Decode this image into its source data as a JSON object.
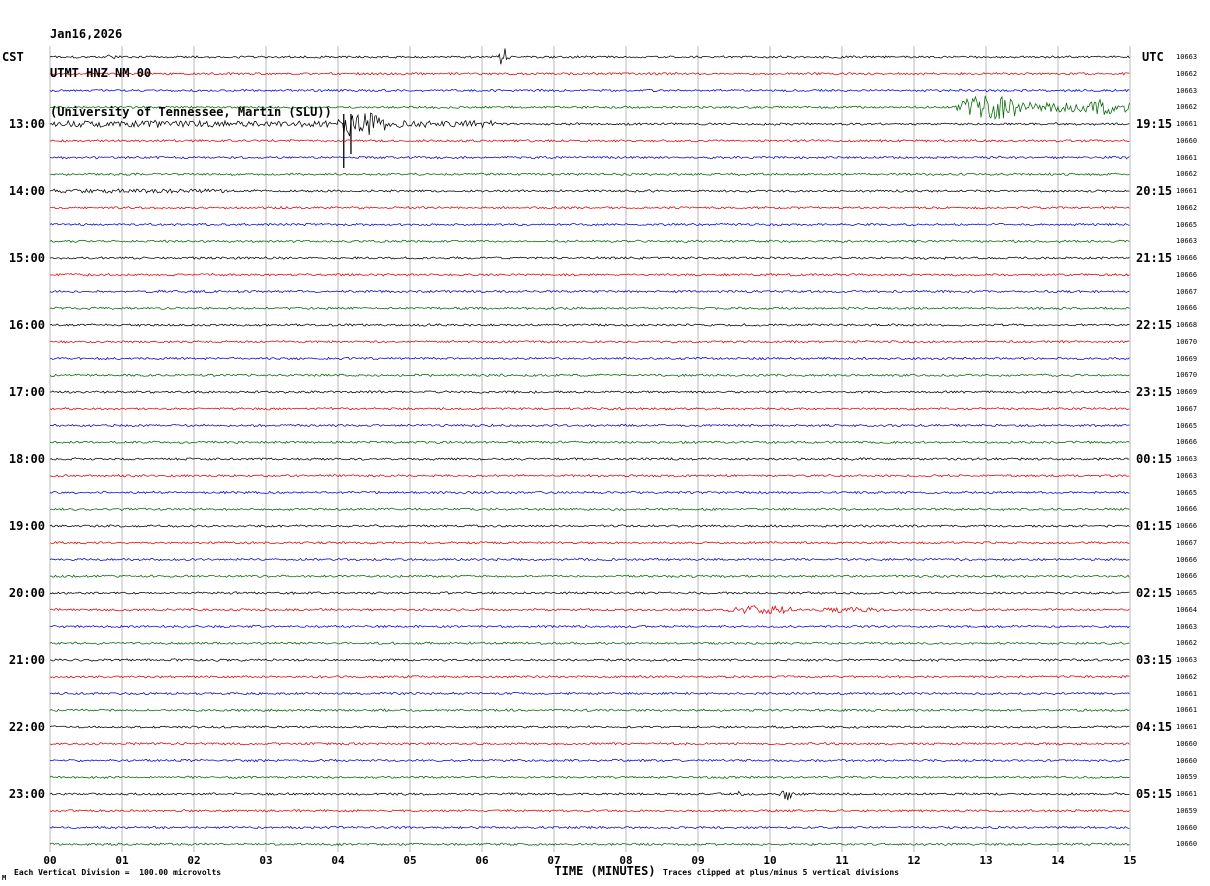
{
  "header": {
    "date": "Jan16,2026",
    "station": "UTMT HNZ NM 00",
    "network": "(University of Tennessee, Martin (SLU))"
  },
  "left_axis_title": "CST",
  "right_axis_title": "UTC",
  "footer": {
    "xlabel": "TIME (MINUTES)",
    "scale_note": "Each Vertical Division =  100.00 microvolts",
    "clip_note": "Traces clipped at plus/minus 5 vertical divisions",
    "mark": "M"
  },
  "chart_data": {
    "type": "line",
    "date": "Jan16,2026",
    "station": "UTMT HNZ NM 00",
    "source": "(University of Tennessee, Martin (SLU))",
    "xlabel": "TIME (MINUTES)",
    "x_ticks": [
      "00",
      "01",
      "02",
      "03",
      "04",
      "05",
      "06",
      "07",
      "08",
      "09",
      "10",
      "11",
      "12",
      "13",
      "14",
      "15"
    ],
    "x_range_minutes": [
      0,
      15
    ],
    "minutes_per_line": 15,
    "rows": 48,
    "colors_cycle": [
      "#000000",
      "#dd0000",
      "#0000cc",
      "#006600"
    ],
    "grid_color": "#8a8a8a",
    "hour_labels": [
      {
        "row": 4,
        "cst": "13:00",
        "utc": "19:15"
      },
      {
        "row": 8,
        "cst": "14:00",
        "utc": "20:15"
      },
      {
        "row": 12,
        "cst": "15:00",
        "utc": "21:15"
      },
      {
        "row": 16,
        "cst": "16:00",
        "utc": "22:15"
      },
      {
        "row": 20,
        "cst": "17:00",
        "utc": "23:15"
      },
      {
        "row": 24,
        "cst": "18:00",
        "utc": "00:15"
      },
      {
        "row": 28,
        "cst": "19:00",
        "utc": "01:15"
      },
      {
        "row": 32,
        "cst": "20:00",
        "utc": "02:15"
      },
      {
        "row": 36,
        "cst": "21:00",
        "utc": "03:15"
      },
      {
        "row": 40,
        "cst": "22:00",
        "utc": "04:15"
      },
      {
        "row": 44,
        "cst": "23:00",
        "utc": "05:15"
      }
    ],
    "row_counts": [
      10663,
      10662,
      10663,
      10662,
      10661,
      10660,
      10661,
      10662,
      10661,
      10662,
      10665,
      10663,
      10666,
      10666,
      10667,
      10666,
      10668,
      10670,
      10669,
      10670,
      10669,
      10667,
      10665,
      10666,
      10663,
      10663,
      10665,
      10666,
      10666,
      10667,
      10666,
      10666,
      10665,
      10664,
      10663,
      10662,
      10663,
      10662,
      10661,
      10661,
      10661,
      10660,
      10660,
      10659,
      10661,
      10659,
      10660,
      10660
    ],
    "events": [
      {
        "row": 0,
        "start": 0.75,
        "end": 0.95,
        "amp": 4,
        "shape": "spike"
      },
      {
        "row": 0,
        "start": 6.2,
        "end": 6.4,
        "amp": 12,
        "shape": "spike"
      },
      {
        "row": 3,
        "start": 12.55,
        "end": 13.6,
        "amp": 13,
        "shape": "burst"
      },
      {
        "row": 3,
        "start": 13.6,
        "end": 15.0,
        "amp": 5,
        "shape": "noise"
      },
      {
        "row": 3,
        "start": 14.3,
        "end": 15.0,
        "amp": 8,
        "shape": "burst"
      },
      {
        "row": 4,
        "start": 0.0,
        "end": 3.9,
        "amp": 3.2,
        "shape": "noise"
      },
      {
        "row": 4,
        "start": 1.3,
        "end": 1.8,
        "amp": 5,
        "shape": "burst"
      },
      {
        "row": 4,
        "start": 3.92,
        "end": 4.75,
        "amp": 15,
        "shape": "burst"
      },
      {
        "row": 4,
        "start": 4.08,
        "end": 4.08,
        "amp": 44,
        "shape": "downspike"
      },
      {
        "row": 4,
        "start": 4.18,
        "end": 4.18,
        "amp": 30,
        "shape": "downspike"
      },
      {
        "row": 4,
        "start": 4.75,
        "end": 6.2,
        "amp": 3.5,
        "shape": "noise"
      },
      {
        "row": 8,
        "start": 0.0,
        "end": 2.5,
        "amp": 2,
        "shape": "noise"
      },
      {
        "row": 33,
        "start": 9.3,
        "end": 10.45,
        "amp": 4.5,
        "shape": "burst"
      },
      {
        "row": 33,
        "start": 10.45,
        "end": 11.7,
        "amp": 2.8,
        "shape": "burst"
      },
      {
        "row": 44,
        "start": 9.5,
        "end": 9.7,
        "amp": 4,
        "shape": "spike"
      },
      {
        "row": 44,
        "start": 10.1,
        "end": 10.35,
        "amp": 9,
        "shape": "spike"
      }
    ]
  }
}
